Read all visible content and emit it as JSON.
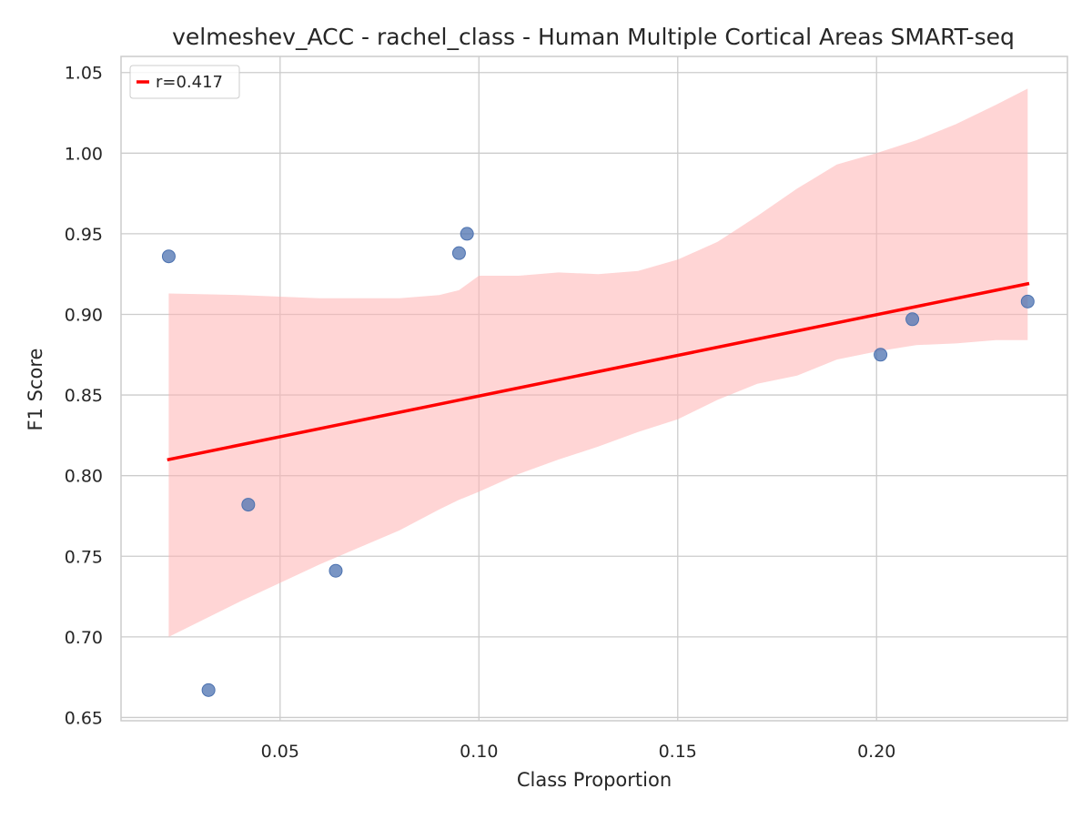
{
  "chart_data": {
    "type": "scatter",
    "title": "velmeshev_ACC - rachel_class - Human Multiple Cortical Areas SMART-seq",
    "xlabel": "Class Proportion",
    "ylabel": "F1 Score",
    "xlim": [
      0.01,
      0.248
    ],
    "ylim": [
      0.648,
      1.06
    ],
    "xticks": [
      0.05,
      0.1,
      0.15,
      0.2
    ],
    "xtick_labels": [
      "0.05",
      "0.10",
      "0.15",
      "0.20"
    ],
    "yticks": [
      0.65,
      0.7,
      0.75,
      0.8,
      0.85,
      0.9,
      0.95,
      1.0,
      1.05
    ],
    "ytick_labels": [
      "0.65",
      "0.70",
      "0.75",
      "0.80",
      "0.85",
      "0.90",
      "0.95",
      "1.00",
      "1.05"
    ],
    "grid": true,
    "legend_position": "top-left",
    "legend_label": "r=0.417",
    "point_color": "#4c72b0",
    "line_color": "#ff0000",
    "band_color": "#ffb3b3",
    "points": [
      {
        "x": 0.022,
        "y": 0.936
      },
      {
        "x": 0.032,
        "y": 0.667
      },
      {
        "x": 0.042,
        "y": 0.782
      },
      {
        "x": 0.064,
        "y": 0.741
      },
      {
        "x": 0.095,
        "y": 0.938
      },
      {
        "x": 0.097,
        "y": 0.95
      },
      {
        "x": 0.201,
        "y": 0.875
      },
      {
        "x": 0.209,
        "y": 0.897
      },
      {
        "x": 0.238,
        "y": 0.908
      }
    ],
    "regression_line": {
      "x": [
        0.022,
        0.238
      ],
      "y": [
        0.81,
        0.919
      ]
    },
    "confidence_band": {
      "x": [
        0.022,
        0.04,
        0.06,
        0.08,
        0.09,
        0.095,
        0.1,
        0.11,
        0.12,
        0.13,
        0.14,
        0.15,
        0.16,
        0.17,
        0.18,
        0.19,
        0.2,
        0.21,
        0.22,
        0.23,
        0.238
      ],
      "upper": [
        0.913,
        0.912,
        0.91,
        0.91,
        0.912,
        0.915,
        0.924,
        0.924,
        0.926,
        0.925,
        0.927,
        0.934,
        0.945,
        0.961,
        0.978,
        0.993,
        1.0,
        1.008,
        1.018,
        1.03,
        1.04
      ],
      "lower": [
        0.7,
        0.722,
        0.745,
        0.766,
        0.779,
        0.785,
        0.79,
        0.801,
        0.81,
        0.818,
        0.827,
        0.835,
        0.847,
        0.857,
        0.862,
        0.872,
        0.877,
        0.881,
        0.882,
        0.884,
        0.884
      ]
    }
  }
}
